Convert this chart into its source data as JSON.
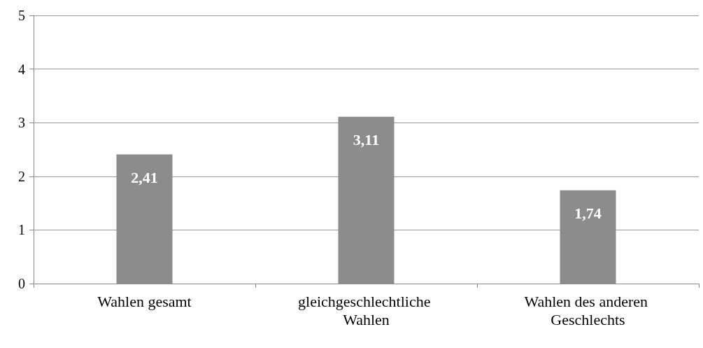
{
  "chart_data": {
    "type": "bar",
    "categories": [
      "Wahlen gesamt",
      "gleichgeschlechtliche Wahlen",
      "Wahlen des anderen Geschlechts"
    ],
    "values": [
      2.41,
      3.11,
      1.74
    ],
    "value_labels": [
      "2,41",
      "3,11",
      "1,74"
    ],
    "color": "#8c8c8c",
    "ylim": [
      0,
      5
    ],
    "yticks": [
      0,
      1,
      2,
      3,
      4,
      5
    ],
    "grid": "y"
  }
}
